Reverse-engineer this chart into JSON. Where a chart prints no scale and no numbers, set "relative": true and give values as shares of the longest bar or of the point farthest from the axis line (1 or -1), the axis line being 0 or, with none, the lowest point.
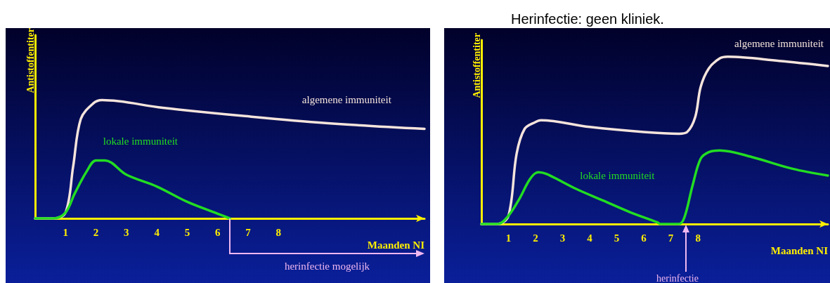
{
  "chart_data": [
    {
      "type": "line",
      "relative": true,
      "xlabel": "Maanden NI",
      "ylabel": "Antistoffentiter",
      "xlim": [
        0,
        12.8
      ],
      "xticks": [
        1,
        2,
        3,
        4,
        5,
        6,
        7,
        8
      ],
      "grid": false,
      "legend": false,
      "marker": "none",
      "line_style": "solid",
      "series": [
        {
          "name": "algemene immuniteit",
          "color": "#f5e4dc",
          "x": [
            0,
            0.6,
            1.0,
            1.25,
            1.5,
            1.9,
            2.2,
            4.2,
            6.9,
            9.55,
            12.8
          ],
          "values": [
            0,
            0,
            0.05,
            0.44,
            0.84,
            0.97,
            1,
            0.935,
            0.865,
            0.806,
            0.757
          ]
        },
        {
          "name": "lokale immuniteit",
          "color": "#22dd22",
          "x": [
            0,
            0.6,
            1.0,
            1.3,
            1.7,
            2.0,
            2.3,
            3.0,
            4.0,
            5.0,
            6.0,
            6.4
          ],
          "values": [
            0,
            0,
            0.05,
            0.21,
            0.4,
            0.49,
            0.49,
            0.37,
            0.27,
            0.14,
            0.04,
            0
          ]
        }
      ],
      "annotations": [
        {
          "text": "herinfectie mogelijk",
          "x": 6.4,
          "y": 0
        }
      ]
    },
    {
      "type": "line",
      "relative": true,
      "title": "Herinfectie: geen kliniek.",
      "xlabel": "Maanden NI",
      "ylabel": "Antistoffentiter",
      "xlim": [
        0,
        12.8
      ],
      "xticks": [
        1,
        2,
        3,
        4,
        5,
        6,
        7,
        8
      ],
      "grid": false,
      "legend": false,
      "marker": "none",
      "line_style": "solid",
      "series": [
        {
          "name": "algemene immuniteit",
          "color": "#f5e4dc",
          "x": [
            0,
            0.6,
            1.0,
            1.3,
            1.6,
            2.0,
            2.2,
            4.0,
            6.0,
            7.3,
            7.6,
            7.9,
            8.1,
            8.4,
            8.8,
            9.1,
            11,
            12.8
          ],
          "values": [
            0,
            0,
            0.05,
            0.42,
            0.57,
            0.61,
            0.62,
            0.58,
            0.55,
            0.54,
            0.55,
            0.64,
            0.82,
            0.93,
            0.99,
            1,
            0.975,
            0.945
          ]
        },
        {
          "name": "lokale immuniteit",
          "color": "#22dd22",
          "x": [
            0,
            0.6,
            1.0,
            1.4,
            1.8,
            2.1,
            2.4,
            3.5,
            4.5,
            5.5,
            6.5,
            6.6,
            7.3,
            7.5,
            7.8,
            8.1,
            8.4,
            8.8,
            10,
            11.5,
            12.8
          ],
          "values": [
            0,
            0,
            0.05,
            0.15,
            0.27,
            0.31,
            0.3,
            0.21,
            0.14,
            0.07,
            0.01,
            0,
            0,
            0.04,
            0.23,
            0.39,
            0.43,
            0.44,
            0.4,
            0.33,
            0.29
          ]
        }
      ],
      "annotations": [
        "herinfectie"
      ]
    }
  ]
}
